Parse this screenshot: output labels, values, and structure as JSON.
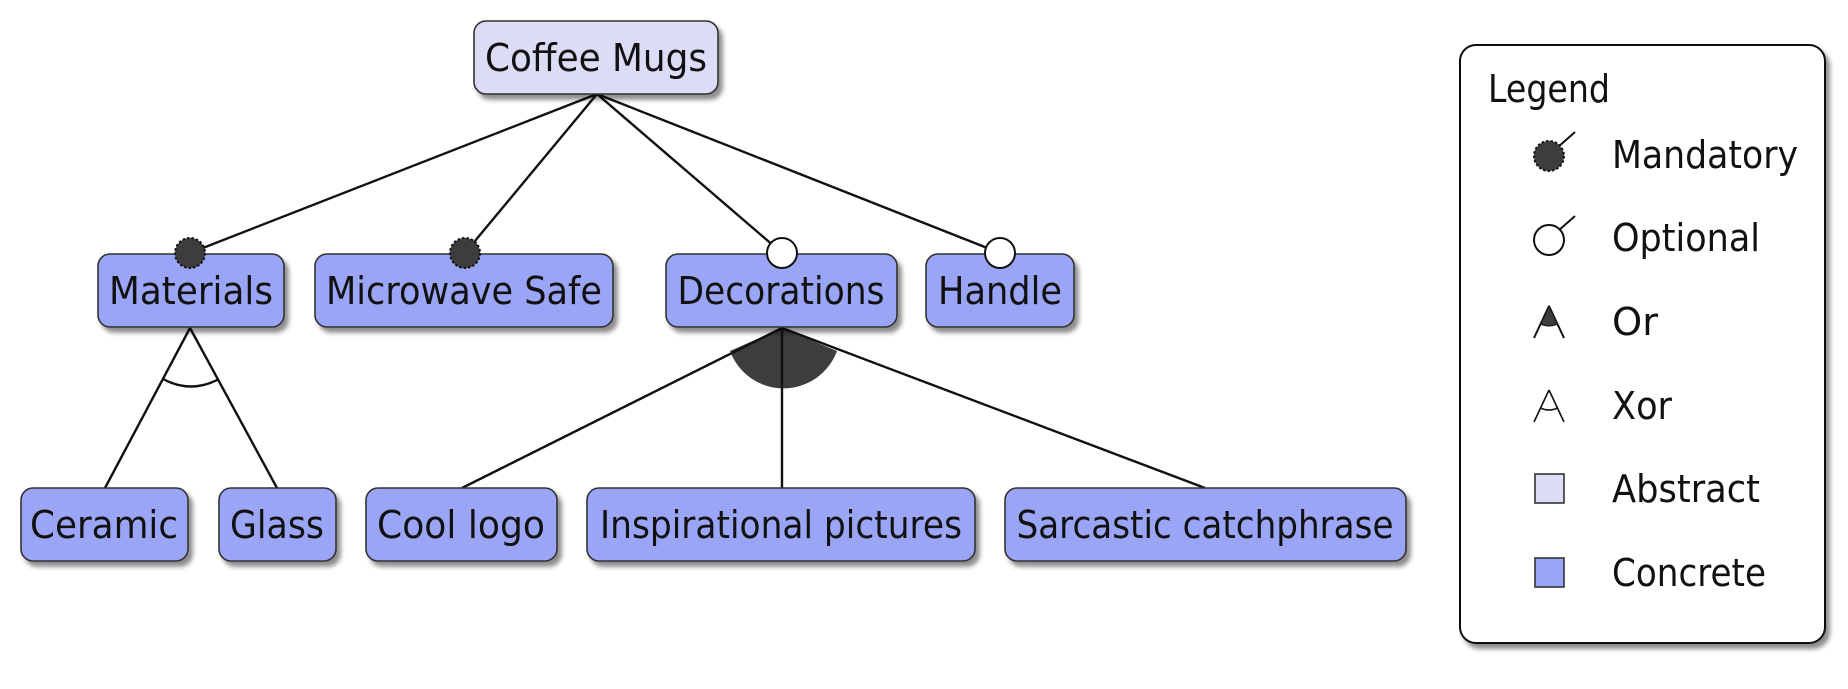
{
  "diagram": {
    "type": "feature-model",
    "colors": {
      "abstract": "#dcdcf7",
      "concrete": "#9aa6f5",
      "mandatory": "#3d3d3d",
      "optional": "#ffffff",
      "or_group": "#3d3d3d",
      "stroke": "#111111"
    },
    "root": {
      "label": "Coffee Mugs",
      "kind": "abstract"
    },
    "features": [
      {
        "label": "Materials",
        "kind": "concrete",
        "relation": "mandatory",
        "group": "xor"
      },
      {
        "label": "Microwave Safe",
        "kind": "concrete",
        "relation": "mandatory"
      },
      {
        "label": "Decorations",
        "kind": "concrete",
        "relation": "optional",
        "group": "or"
      },
      {
        "label": "Handle",
        "kind": "concrete",
        "relation": "optional"
      }
    ],
    "subfeatures": {
      "materials": [
        {
          "label": "Ceramic",
          "kind": "concrete"
        },
        {
          "label": "Glass",
          "kind": "concrete"
        }
      ],
      "decorations": [
        {
          "label": "Cool logo",
          "kind": "concrete"
        },
        {
          "label": "Inspirational pictures",
          "kind": "concrete"
        },
        {
          "label": "Sarcastic catchphrase",
          "kind": "concrete"
        }
      ]
    }
  },
  "legend": {
    "title": "Legend",
    "items": [
      {
        "label": "Mandatory",
        "icon": "mandatory-icon"
      },
      {
        "label": "Optional",
        "icon": "optional-icon"
      },
      {
        "label": "Or",
        "icon": "or-group-icon"
      },
      {
        "label": "Xor",
        "icon": "xor-group-icon"
      },
      {
        "label": "Abstract",
        "icon": "abstract-swatch-icon"
      },
      {
        "label": "Concrete",
        "icon": "concrete-swatch-icon"
      }
    ]
  }
}
